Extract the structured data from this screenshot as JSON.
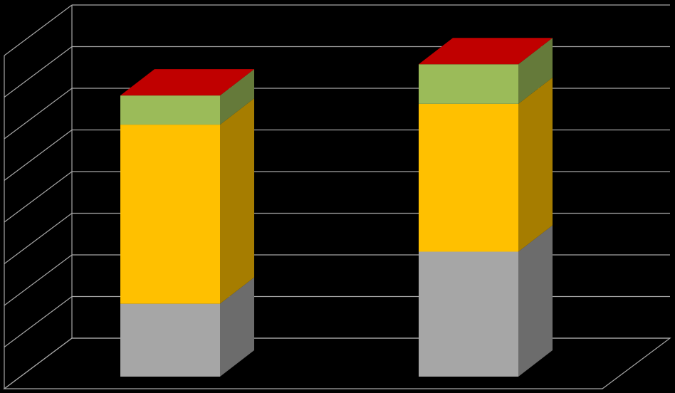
{
  "chart_data": {
    "type": "bar",
    "stacked": true,
    "three_d": true,
    "categories": [
      "",
      ""
    ],
    "series": [
      {
        "color": "#a6a6a6",
        "values": [
          1.75,
          3.0
        ]
      },
      {
        "color": "#ffc000",
        "values": [
          4.3,
          3.55
        ]
      },
      {
        "color": "#9bbb59",
        "values": [
          0.7,
          0.95
        ]
      },
      {
        "color": "#c00000",
        "values": [
          0.0,
          0.0
        ]
      }
    ],
    "ylim": [
      0,
      8
    ],
    "grid": true,
    "title": "",
    "xlabel": "",
    "ylabel": "",
    "background": "#000000",
    "gridline_color": "#a6a6a6"
  }
}
